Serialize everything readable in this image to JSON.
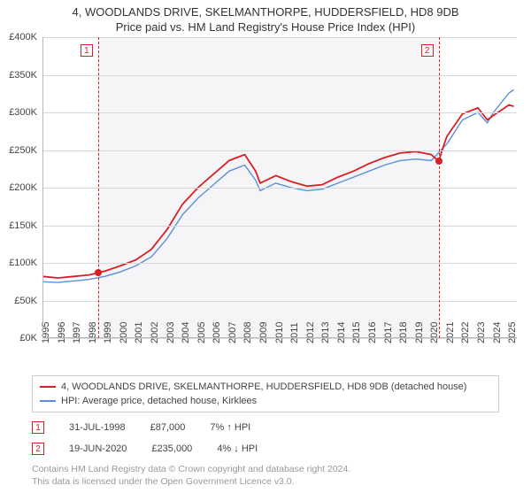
{
  "title": "4, WOODLANDS DRIVE, SKELMANTHORPE, HUDDERSFIELD, HD8 9DB",
  "subtitle": "Price paid vs. HM Land Registry's House Price Index (HPI)",
  "chart": {
    "type": "line",
    "background_color": "#ffffff",
    "plotband_color": "#f5f5f7",
    "grid_color": "#d8d8d8",
    "axis_color": "#b8b8b8",
    "text_color": "#444444",
    "ylim": [
      0,
      400000
    ],
    "ytick_step": 50000,
    "ytick_labels": [
      "£0K",
      "£50K",
      "£100K",
      "£150K",
      "£200K",
      "£250K",
      "£300K",
      "£350K",
      "£400K"
    ],
    "xlim": [
      1995,
      2025.5
    ],
    "xtick_step": 1,
    "xtick_labels": [
      "1995",
      "1996",
      "1997",
      "1998",
      "1999",
      "2000",
      "2001",
      "2002",
      "2003",
      "2004",
      "2005",
      "2006",
      "2007",
      "2008",
      "2009",
      "2010",
      "2011",
      "2012",
      "2013",
      "2014",
      "2015",
      "2016",
      "2017",
      "2018",
      "2019",
      "2020",
      "2021",
      "2022",
      "2023",
      "2024",
      "2025"
    ],
    "series": [
      {
        "name": "4, WOODLANDS DRIVE, SKELMANTHORPE, HUDDERSFIELD, HD8 9DB (detached house)",
        "color": "#d62024",
        "width": 1.8,
        "data": [
          [
            1995,
            82000
          ],
          [
            1996,
            80000
          ],
          [
            1997,
            82000
          ],
          [
            1998,
            84000
          ],
          [
            1998.58,
            87000
          ],
          [
            1999,
            89000
          ],
          [
            2000,
            96000
          ],
          [
            2001,
            104000
          ],
          [
            2002,
            118000
          ],
          [
            2003,
            144000
          ],
          [
            2004,
            178000
          ],
          [
            2005,
            200000
          ],
          [
            2006,
            218000
          ],
          [
            2007,
            236000
          ],
          [
            2008,
            244000
          ],
          [
            2008.7,
            222000
          ],
          [
            2009,
            206000
          ],
          [
            2010,
            216000
          ],
          [
            2011,
            208000
          ],
          [
            2012,
            202000
          ],
          [
            2013,
            204000
          ],
          [
            2014,
            214000
          ],
          [
            2015,
            222000
          ],
          [
            2016,
            232000
          ],
          [
            2017,
            240000
          ],
          [
            2018,
            246000
          ],
          [
            2019,
            248000
          ],
          [
            2020,
            244000
          ],
          [
            2020.47,
            235000
          ],
          [
            2020.8,
            256000
          ],
          [
            2021,
            268000
          ],
          [
            2022,
            298000
          ],
          [
            2023,
            306000
          ],
          [
            2023.6,
            290000
          ],
          [
            2024,
            296000
          ],
          [
            2025,
            310000
          ],
          [
            2025.3,
            308000
          ]
        ]
      },
      {
        "name": "HPI: Average price, detached house, Kirklees",
        "color": "#5b8fd6",
        "width": 1.4,
        "data": [
          [
            1995,
            75000
          ],
          [
            1996,
            74000
          ],
          [
            1997,
            76000
          ],
          [
            1998,
            78000
          ],
          [
            1999,
            82000
          ],
          [
            2000,
            88000
          ],
          [
            2001,
            96000
          ],
          [
            2002,
            108000
          ],
          [
            2003,
            132000
          ],
          [
            2004,
            164000
          ],
          [
            2005,
            186000
          ],
          [
            2006,
            204000
          ],
          [
            2007,
            222000
          ],
          [
            2008,
            230000
          ],
          [
            2008.7,
            210000
          ],
          [
            2009,
            196000
          ],
          [
            2010,
            206000
          ],
          [
            2011,
            200000
          ],
          [
            2012,
            196000
          ],
          [
            2013,
            198000
          ],
          [
            2014,
            206000
          ],
          [
            2015,
            214000
          ],
          [
            2016,
            222000
          ],
          [
            2017,
            230000
          ],
          [
            2018,
            236000
          ],
          [
            2019,
            238000
          ],
          [
            2020,
            236000
          ],
          [
            2021,
            258000
          ],
          [
            2022,
            290000
          ],
          [
            2023,
            300000
          ],
          [
            2023.6,
            286000
          ],
          [
            2024,
            300000
          ],
          [
            2025,
            326000
          ],
          [
            2025.3,
            330000
          ]
        ]
      }
    ],
    "markers": [
      {
        "n": "1",
        "x": 1998.58,
        "y": 87000,
        "box_color": "#d62024",
        "dot_color": "#d62024"
      },
      {
        "n": "2",
        "x": 2020.47,
        "y": 235000,
        "box_color": "#d62024",
        "dot_color": "#d62024"
      }
    ]
  },
  "legend": {
    "items": [
      {
        "color": "#d62024",
        "label": "4, WOODLANDS DRIVE, SKELMANTHORPE, HUDDERSFIELD, HD8 9DB (detached house)"
      },
      {
        "color": "#5b8fd6",
        "label": "HPI: Average price, detached house, Kirklees"
      }
    ]
  },
  "events": [
    {
      "n": "1",
      "box_color": "#d62024",
      "date": "31-JUL-1998",
      "price": "£87,000",
      "pct": "7%",
      "arrow": "↑",
      "suffix": "HPI"
    },
    {
      "n": "2",
      "box_color": "#d62024",
      "date": "19-JUN-2020",
      "price": "£235,000",
      "pct": "4%",
      "arrow": "↓",
      "suffix": "HPI"
    }
  ],
  "attribution": "Contains HM Land Registry data © Crown copyright and database right 2024.\nThis data is licensed under the Open Government Licence v3.0."
}
